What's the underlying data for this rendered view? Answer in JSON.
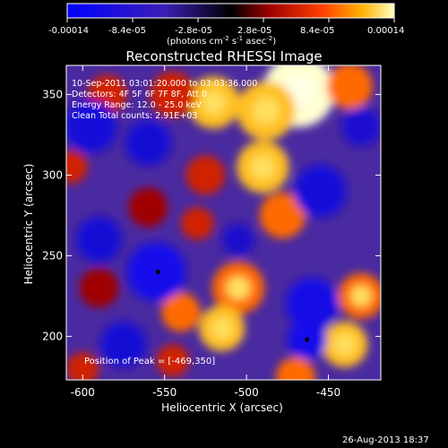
{
  "chart_data": {
    "type": "heatmap",
    "title": "Reconstructed RHESSI Image",
    "xlabel": "Heliocentric X (arcsec)",
    "ylabel": "Heliocentric Y (arcsec)",
    "xlim": [
      -610,
      -418
    ],
    "ylim": [
      173,
      368
    ],
    "xticks": [
      -600,
      -550,
      -500,
      -450
    ],
    "yticks": [
      200,
      250,
      300,
      350
    ],
    "colorbar": {
      "ticks": [
        "-0.00014",
        "-8.4e-05",
        "-2.8e-05",
        "2.8e-05",
        "8.4e-05",
        "0.00014"
      ],
      "unit_main": "(photons cm",
      "unit_exp1": "-2",
      "unit_mid": " s",
      "unit_exp2": "-1",
      "unit_end": " asec",
      "unit_exp3": "-2",
      "unit_close": ")",
      "range": [
        -0.00014,
        0.00014
      ]
    },
    "info_lines": [
      "10-Sep-2011 03:01:20.000 to 03:03:36.000",
      "Detectors: 4F 5F 6F 7F 8F, Att 0",
      "Energy Range: 12.0 - 25.0 keV",
      "Clean    Total counts: 2.91E+03"
    ],
    "peak_label": "Position of Peak = [-469,350]",
    "markers": [
      {
        "x": -554,
        "y": 240
      },
      {
        "x": -463,
        "y": 198
      }
    ],
    "blobs": [
      {
        "x": -468,
        "y": 352,
        "r": 22,
        "v": 1.0
      },
      {
        "x": -488,
        "y": 340,
        "r": 18,
        "v": 0.85
      },
      {
        "x": -520,
        "y": 345,
        "r": 16,
        "v": 0.8
      },
      {
        "x": -545,
        "y": 350,
        "r": 14,
        "v": 0.55
      },
      {
        "x": -585,
        "y": 350,
        "r": 12,
        "v": 0.5
      },
      {
        "x": -437,
        "y": 355,
        "r": 14,
        "v": 0.65
      },
      {
        "x": -490,
        "y": 305,
        "r": 16,
        "v": 0.8
      },
      {
        "x": -478,
        "y": 275,
        "r": 14,
        "v": 0.7
      },
      {
        "x": -525,
        "y": 300,
        "r": 12,
        "v": 0.6
      },
      {
        "x": -530,
        "y": 270,
        "r": 10,
        "v": 0.55
      },
      {
        "x": -560,
        "y": 280,
        "r": 12,
        "v": 0.45
      },
      {
        "x": -607,
        "y": 305,
        "r": 10,
        "v": 0.6
      },
      {
        "x": -505,
        "y": 230,
        "r": 16,
        "v": 0.75
      },
      {
        "x": -515,
        "y": 205,
        "r": 14,
        "v": 0.8
      },
      {
        "x": -540,
        "y": 215,
        "r": 12,
        "v": 0.65
      },
      {
        "x": -590,
        "y": 230,
        "r": 12,
        "v": 0.45
      },
      {
        "x": -430,
        "y": 225,
        "r": 14,
        "v": 0.75
      },
      {
        "x": -440,
        "y": 195,
        "r": 14,
        "v": 0.8
      },
      {
        "x": -470,
        "y": 175,
        "r": 12,
        "v": 0.7
      },
      {
        "x": -600,
        "y": 180,
        "r": 10,
        "v": 0.5
      },
      {
        "x": -545,
        "y": 185,
        "r": 10,
        "v": 0.55
      },
      {
        "x": -595,
        "y": 330,
        "r": 16,
        "v": -0.55
      },
      {
        "x": -560,
        "y": 320,
        "r": 14,
        "v": -0.5
      },
      {
        "x": -555,
        "y": 240,
        "r": 18,
        "v": -0.75
      },
      {
        "x": -590,
        "y": 260,
        "r": 14,
        "v": -0.5
      },
      {
        "x": -460,
        "y": 220,
        "r": 16,
        "v": -0.7
      },
      {
        "x": -463,
        "y": 198,
        "r": 12,
        "v": -0.75
      },
      {
        "x": -455,
        "y": 290,
        "r": 16,
        "v": -0.55
      },
      {
        "x": -430,
        "y": 330,
        "r": 12,
        "v": -0.45
      },
      {
        "x": -575,
        "y": 195,
        "r": 14,
        "v": -0.5
      },
      {
        "x": -505,
        "y": 260,
        "r": 10,
        "v": -0.4
      }
    ]
  },
  "footer": {
    "timestamp": "26-Aug-2013 18:37"
  }
}
